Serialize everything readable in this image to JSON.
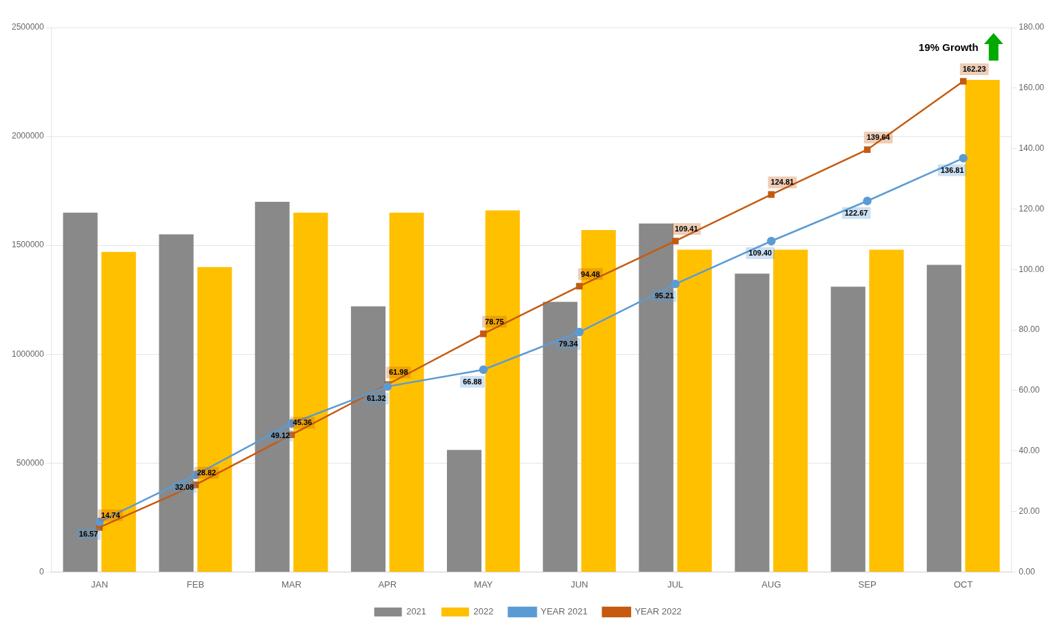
{
  "chart_data": {
    "type": "bar",
    "categories": [
      "JAN",
      "FEB",
      "MAR",
      "APR",
      "MAY",
      "JUN",
      "JUL",
      "AUG",
      "SEP",
      "OCT"
    ],
    "series": [
      {
        "name": "2021",
        "type": "bar",
        "color": "#898989",
        "values": [
          1650000,
          1550000,
          1700000,
          1220000,
          560000,
          1240000,
          1600000,
          1370000,
          1310000,
          1410000
        ]
      },
      {
        "name": "2022",
        "type": "bar",
        "color": "#FFC000",
        "values": [
          1470000,
          1400000,
          1650000,
          1650000,
          1660000,
          1570000,
          1480000,
          1480000,
          1480000,
          2260000
        ]
      },
      {
        "name": "YEAR 2021",
        "type": "line",
        "axis": "y2",
        "color": "#5B9BD5",
        "marker": "circle",
        "data_labels": true,
        "values": [
          16.57,
          32.08,
          49.12,
          61.32,
          66.88,
          79.34,
          95.21,
          109.4,
          122.67,
          136.81
        ],
        "value_labels": [
          "16.57",
          "32.08",
          "49.12",
          "61.32",
          "66.88",
          "79.34",
          "95.21",
          "109.40",
          "122.67",
          "136.81"
        ]
      },
      {
        "name": "YEAR 2022",
        "type": "line",
        "axis": "y2",
        "color": "#C55A11",
        "marker": "square",
        "data_labels": true,
        "values": [
          14.74,
          28.82,
          45.36,
          61.98,
          78.75,
          94.48,
          109.41,
          124.81,
          139.64,
          162.23
        ],
        "value_labels": [
          "14.74",
          "28.82",
          "45.36",
          "61.98",
          "78.75",
          "94.48",
          "109.41",
          "124.81",
          "139.64",
          "162.23"
        ]
      }
    ],
    "ylim": [
      0,
      2500000
    ],
    "yticks": [
      0,
      500000,
      1000000,
      1500000,
      2000000,
      2500000
    ],
    "y2lim": [
      0,
      180
    ],
    "y2ticks": [
      {
        "value": 0,
        "label": "0.00"
      },
      {
        "value": 20,
        "label": "20.00"
      },
      {
        "value": 40,
        "label": "40.00"
      },
      {
        "value": 60,
        "label": "60.00"
      },
      {
        "value": 80,
        "label": "80.00"
      },
      {
        "value": 100,
        "label": "100.00"
      },
      {
        "value": 120,
        "label": "120.00"
      },
      {
        "value": 140,
        "label": "140.00"
      },
      {
        "value": 160,
        "label": "160.00"
      },
      {
        "value": 180,
        "label": "180.00"
      }
    ],
    "grid": true,
    "legend": "bottom",
    "annotations": [
      "19% Growth"
    ]
  }
}
